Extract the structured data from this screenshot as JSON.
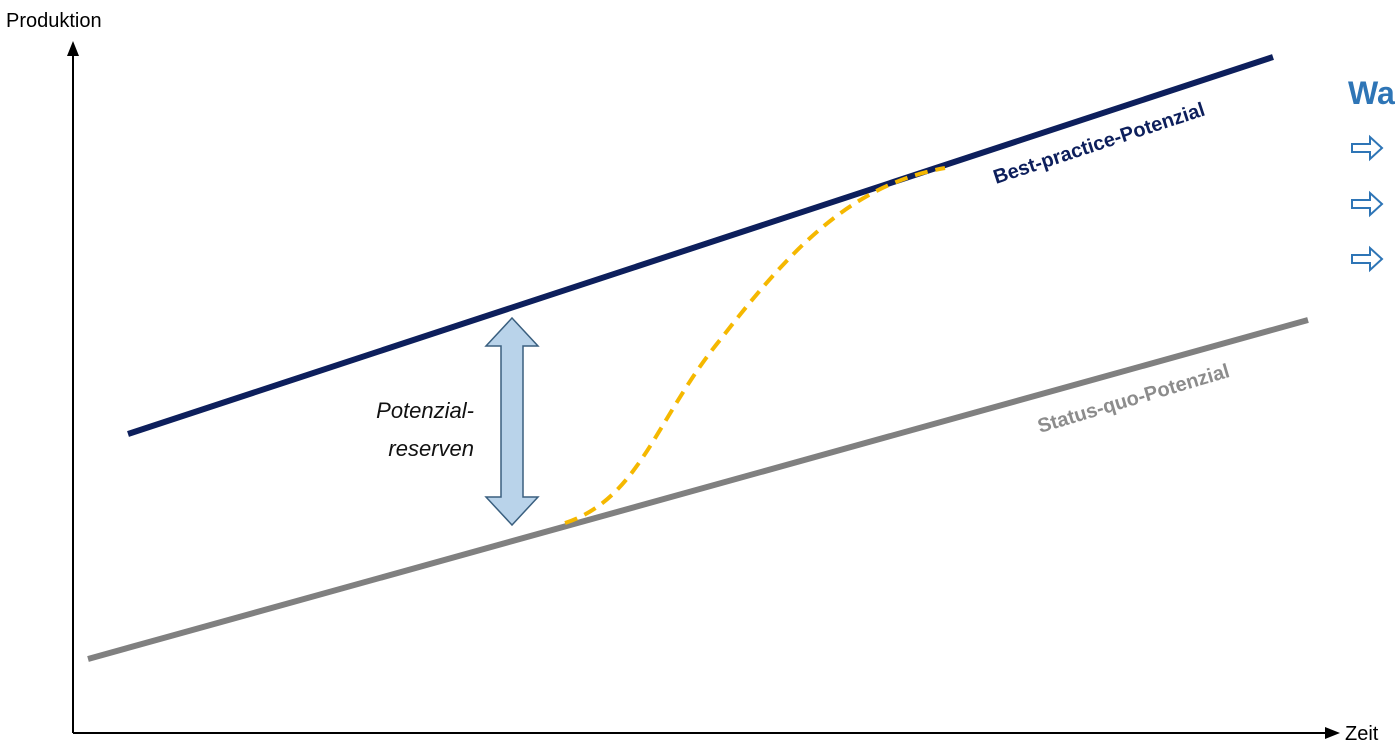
{
  "axes": {
    "y_label": "Produktion",
    "x_label": "Zeit"
  },
  "lines": {
    "best_practice": {
      "label": "Best-practice-Potenzial",
      "color": "#0d1f5c"
    },
    "status_quo": {
      "label": "Status-quo-Potenzial",
      "color": "#808080"
    },
    "transition": {
      "color": "#f5b800"
    }
  },
  "reserve": {
    "label_line1": "Potenzial-",
    "label_line2": "reserven",
    "arrow_fill": "#b9d3ea",
    "arrow_stroke": "#3a5f7f"
  },
  "side_panel": {
    "title": "Wa",
    "title_color": "#2e75b6",
    "bullet_count": 3,
    "bullet_color": "#2e75b6"
  }
}
